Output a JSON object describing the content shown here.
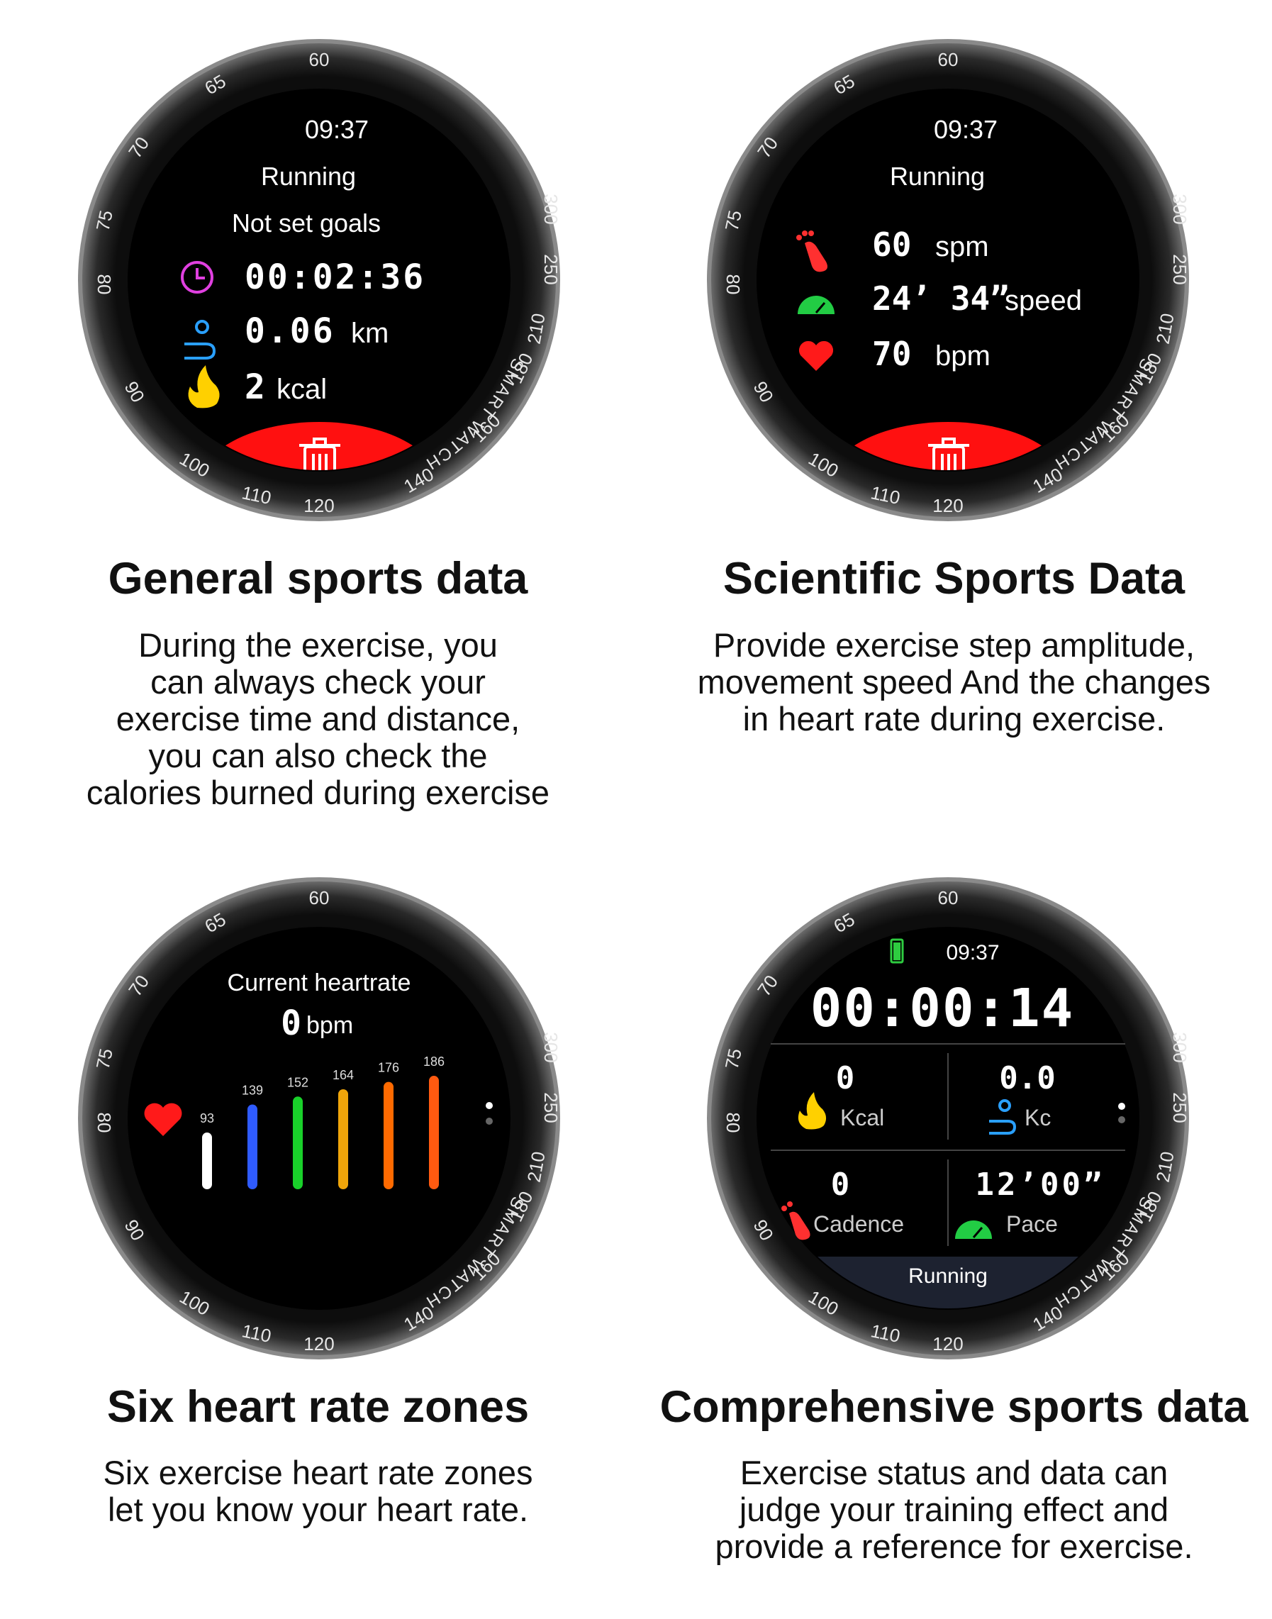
{
  "bezel": {
    "brand": "SMART WATCH",
    "scale": [
      "60",
      "65",
      "70",
      "75",
      "80",
      "90",
      "100",
      "110",
      "120",
      "140",
      "160",
      "180",
      "210",
      "250",
      "300"
    ]
  },
  "colors": {
    "screen": "#000000",
    "bezel": "#1a1a1a",
    "delete_bar": "#ff1010",
    "clock_icon": "#e040e0",
    "distance_icon": "#2aa0ff",
    "fire_icon": "#ffd000",
    "speed_icon": "#22cc44",
    "heart_icon": "#ff1a1a",
    "foot_icon": "#ff3030"
  },
  "panels": [
    {
      "time": "09:37",
      "activity": "Running",
      "goal": "Not set goals",
      "rows": [
        {
          "icon": "clock-icon",
          "value": "00:02:36",
          "unit": ""
        },
        {
          "icon": "distance-icon",
          "value": "0.06",
          "unit": "km"
        },
        {
          "icon": "fire-icon",
          "value": "2",
          "unit": "kcal"
        }
      ],
      "delete_icon": "trash-icon",
      "title": "General sports data",
      "desc": [
        "During the exercise, you",
        "can always check your",
        "exercise time and distance,",
        "you can also check the",
        "calories burned during exercise"
      ]
    },
    {
      "time": "09:37",
      "activity": "Running",
      "rows": [
        {
          "icon": "foot-icon",
          "value": "60",
          "unit": "spm"
        },
        {
          "icon": "speedometer-icon",
          "value": "24’ 34”",
          "unit": "speed"
        },
        {
          "icon": "heart-icon",
          "value": "70",
          "unit": "bpm"
        }
      ],
      "delete_icon": "trash-icon",
      "title": "Scientific Sports Data",
      "desc": [
        "Provide exercise step amplitude,",
        "movement speed And the changes",
        "in heart rate during exercise."
      ]
    },
    {
      "label": "Current heartrate",
      "bpm_value": "0",
      "bpm_unit": "bpm",
      "zones": [
        {
          "value": "93",
          "color": "#ffffff"
        },
        {
          "value": "139",
          "color": "#2f5bff"
        },
        {
          "value": "152",
          "color": "#19d12a"
        },
        {
          "value": "164",
          "color": "#f0a50a"
        },
        {
          "value": "176",
          "color": "#ff6a00"
        },
        {
          "value": "186",
          "color": "#ff5a10"
        }
      ],
      "title": "Six heart rate zones",
      "desc": [
        "Six exercise heart rate zones",
        "let you know your heart rate."
      ]
    },
    {
      "time": "09:37",
      "timer": "00:00:14",
      "cells": [
        {
          "value": "0",
          "label": "Kcal",
          "icon": "fire-icon"
        },
        {
          "value": "0.0",
          "label": "Kc",
          "icon": "distance-icon"
        },
        {
          "value": "0",
          "label": "Cadence",
          "icon": "foot-icon"
        },
        {
          "value": "12’00”",
          "label": "Pace",
          "icon": "speedometer-icon"
        }
      ],
      "status": "Running",
      "title": "Comprehensive sports data",
      "desc": [
        "Exercise status and data can",
        "judge your training effect and",
        "provide a reference for exercise."
      ]
    }
  ]
}
